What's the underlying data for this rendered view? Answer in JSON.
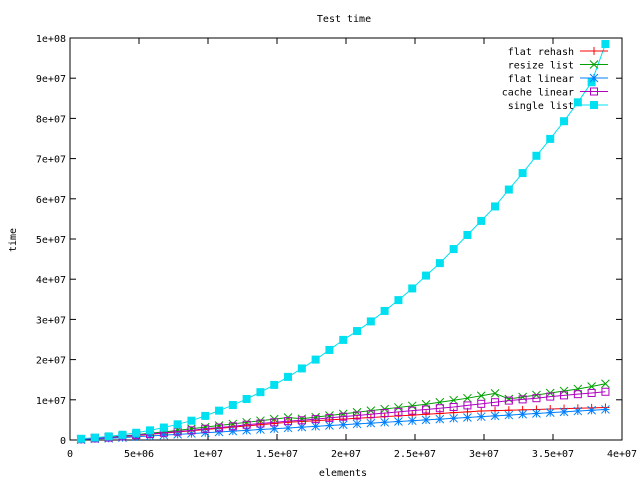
{
  "chart_data": {
    "type": "line",
    "title": "Test time",
    "xlabel": "elements",
    "ylabel": "time",
    "xlim": [
      0,
      40000000
    ],
    "ylim": [
      0,
      100000000
    ],
    "xticks": [
      {
        "value": 0,
        "label": "0"
      },
      {
        "value": 5000000,
        "label": "5e+06"
      },
      {
        "value": 10000000,
        "label": "1e+07"
      },
      {
        "value": 15000000,
        "label": "1.5e+07"
      },
      {
        "value": 20000000,
        "label": "2e+07"
      },
      {
        "value": 25000000,
        "label": "2.5e+07"
      },
      {
        "value": 30000000,
        "label": "3e+07"
      },
      {
        "value": 35000000,
        "label": "3.5e+07"
      },
      {
        "value": 40000000,
        "label": "4e+07"
      }
    ],
    "yticks": [
      {
        "value": 0,
        "label": "0"
      },
      {
        "value": 10000000,
        "label": "1e+07"
      },
      {
        "value": 20000000,
        "label": "2e+07"
      },
      {
        "value": 30000000,
        "label": "3e+07"
      },
      {
        "value": 40000000,
        "label": "4e+07"
      },
      {
        "value": 50000000,
        "label": "5e+07"
      },
      {
        "value": 60000000,
        "label": "6e+07"
      },
      {
        "value": 70000000,
        "label": "7e+07"
      },
      {
        "value": 80000000,
        "label": "8e+07"
      },
      {
        "value": 90000000,
        "label": "9e+07"
      },
      {
        "value": 100000000,
        "label": "1e+08"
      }
    ],
    "grid": false,
    "legend_position": "top-right",
    "x": [
      800000,
      1800000,
      2800000,
      3800000,
      4800000,
      5800000,
      6800000,
      7800000,
      8800000,
      9800000,
      10800000,
      11800000,
      12800000,
      13800000,
      14800000,
      15800000,
      16800000,
      17800000,
      18800000,
      19800000,
      20800000,
      21800000,
      22800000,
      23800000,
      24800000,
      25800000,
      26800000,
      27800000,
      28800000,
      29800000,
      30800000,
      31800000,
      32800000,
      33800000,
      34800000,
      35800000,
      36800000,
      37800000,
      38800000
    ],
    "series": [
      {
        "name": "flat rehash",
        "color": "#ff0000",
        "marker": "plus",
        "values": [
          200000,
          400000,
          600000,
          800000,
          1100000,
          1400000,
          1700000,
          2000000,
          2300000,
          2600000,
          2900000,
          3200000,
          3500000,
          3800000,
          4100000,
          4400000,
          4600000,
          4800000,
          5000000,
          5200000,
          5400000,
          5600000,
          5800000,
          6000000,
          6200000,
          6400000,
          6600000,
          6800000,
          7000000,
          7200000,
          7300000,
          7400000,
          7500000,
          7600000,
          7700000,
          7800000,
          7900000,
          8000000,
          8100000
        ]
      },
      {
        "name": "resize list",
        "color": "#00a000",
        "marker": "x",
        "values": [
          200000,
          500000,
          700000,
          1000000,
          1300000,
          1700000,
          2000000,
          2400000,
          2800000,
          3200000,
          3600000,
          4000000,
          4400000,
          4800000,
          5200000,
          5600000,
          5300000,
          5700000,
          6100000,
          6500000,
          6900000,
          7300000,
          7700000,
          8100000,
          8500000,
          8900000,
          9400000,
          9900000,
          10400000,
          11000000,
          11600000,
          10200000,
          10700000,
          11200000,
          11700000,
          12200000,
          12700000,
          13300000,
          14000000
        ]
      },
      {
        "name": "flat linear",
        "color": "#0080ff",
        "marker": "star",
        "values": [
          100000,
          300000,
          400000,
          600000,
          800000,
          1000000,
          1200000,
          1400000,
          1600000,
          1800000,
          2000000,
          2200000,
          2400000,
          2600000,
          2800000,
          3000000,
          3200000,
          3400000,
          3600000,
          3800000,
          4000000,
          4200000,
          4400000,
          4600000,
          4800000,
          5000000,
          5200000,
          5400000,
          5600000,
          5800000,
          6000000,
          6200000,
          6400000,
          6600000,
          6800000,
          7000000,
          7200000,
          7400000,
          7600000
        ]
      },
      {
        "name": "cache linear",
        "color": "#b000c0",
        "marker": "open-square",
        "values": [
          200000,
          400000,
          600000,
          900000,
          1200000,
          1500000,
          1800000,
          2100000,
          2400000,
          2800000,
          3100000,
          3400000,
          3800000,
          4100000,
          4400000,
          4700000,
          4900000,
          5200000,
          5500000,
          5800000,
          6100000,
          6400000,
          6700000,
          7000000,
          7300000,
          7600000,
          7900000,
          8200000,
          8600000,
          9000000,
          9400000,
          9800000,
          10100000,
          10400000,
          10800000,
          11100000,
          11400000,
          11700000,
          12000000
        ]
      },
      {
        "name": "single list",
        "color": "#00e0f0",
        "marker": "filled-square",
        "values": [
          300000,
          600000,
          900000,
          1300000,
          1800000,
          2400000,
          3100000,
          3900000,
          4800000,
          6000000,
          7300000,
          8700000,
          10200000,
          11900000,
          13700000,
          15700000,
          17800000,
          20000000,
          22400000,
          24900000,
          27100000,
          29500000,
          32100000,
          34800000,
          37700000,
          40900000,
          44000000,
          47500000,
          51000000,
          54500000,
          58100000,
          62300000,
          66400000,
          70700000,
          74900000,
          79300000,
          84000000,
          89000000,
          98500000
        ]
      }
    ]
  }
}
